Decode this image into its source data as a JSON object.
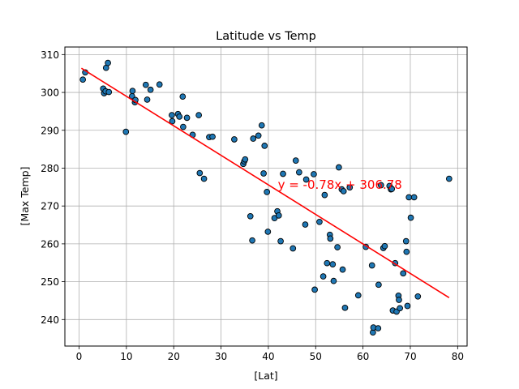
{
  "chart_data": {
    "type": "scatter",
    "title": "Latitude vs Temp",
    "xlabel": "[Lat]",
    "ylabel": "[Max Temp]",
    "xlim": [
      -3,
      82
    ],
    "ylim": [
      233,
      312
    ],
    "xticks": [
      0,
      10,
      20,
      30,
      40,
      50,
      60,
      70,
      80
    ],
    "yticks": [
      240,
      250,
      260,
      270,
      280,
      290,
      300,
      310
    ],
    "grid": true,
    "colors": {
      "points": "#1f77b4",
      "point_edge": "#000000",
      "regression": "#ff0000",
      "annotation": "#ff0000"
    },
    "points": [
      [
        0.8,
        303.4
      ],
      [
        1.3,
        305.3
      ],
      [
        5.1,
        301.0
      ],
      [
        5.3,
        299.8
      ],
      [
        5.6,
        300.3
      ],
      [
        5.7,
        306.5
      ],
      [
        6.1,
        307.8
      ],
      [
        6.3,
        300.1
      ],
      [
        9.9,
        289.6
      ],
      [
        11.3,
        300.4
      ],
      [
        11.2,
        299.0
      ],
      [
        11.8,
        297.4
      ],
      [
        11.9,
        298.0
      ],
      [
        14.1,
        302.0
      ],
      [
        14.4,
        298.1
      ],
      [
        15.1,
        300.7
      ],
      [
        17.0,
        302.1
      ],
      [
        19.6,
        294.0
      ],
      [
        19.7,
        292.4
      ],
      [
        20.9,
        294.3
      ],
      [
        21.2,
        293.6
      ],
      [
        21.9,
        298.9
      ],
      [
        22.0,
        290.9
      ],
      [
        22.8,
        293.3
      ],
      [
        24.0,
        288.8
      ],
      [
        25.3,
        294.0
      ],
      [
        25.5,
        278.7
      ],
      [
        26.4,
        277.2
      ],
      [
        27.5,
        288.2
      ],
      [
        28.2,
        288.3
      ],
      [
        32.8,
        287.6
      ],
      [
        34.7,
        281.1
      ],
      [
        34.9,
        281.8
      ],
      [
        35.1,
        282.3
      ],
      [
        36.2,
        267.3
      ],
      [
        36.6,
        260.9
      ],
      [
        36.8,
        287.8
      ],
      [
        37.9,
        288.6
      ],
      [
        38.6,
        291.3
      ],
      [
        39.0,
        278.6
      ],
      [
        39.2,
        285.9
      ],
      [
        39.7,
        273.7
      ],
      [
        39.9,
        263.2
      ],
      [
        41.3,
        266.8
      ],
      [
        41.9,
        268.6
      ],
      [
        42.2,
        267.5
      ],
      [
        42.6,
        260.7
      ],
      [
        43.1,
        278.5
      ],
      [
        45.2,
        258.8
      ],
      [
        45.8,
        282.0
      ],
      [
        46.5,
        278.9
      ],
      [
        47.8,
        265.1
      ],
      [
        48.0,
        277.0
      ],
      [
        49.6,
        278.4
      ],
      [
        49.8,
        247.9
      ],
      [
        50.8,
        265.8
      ],
      [
        51.6,
        251.4
      ],
      [
        51.9,
        272.9
      ],
      [
        52.4,
        254.9
      ],
      [
        53.0,
        262.4
      ],
      [
        53.1,
        261.4
      ],
      [
        53.6,
        254.6
      ],
      [
        53.8,
        250.2
      ],
      [
        54.6,
        259.1
      ],
      [
        54.9,
        280.2
      ],
      [
        55.5,
        274.4
      ],
      [
        55.7,
        253.2
      ],
      [
        55.9,
        273.9
      ],
      [
        56.2,
        243.1
      ],
      [
        57.2,
        274.9
      ],
      [
        59.0,
        246.4
      ],
      [
        60.6,
        259.2
      ],
      [
        61.9,
        254.3
      ],
      [
        62.1,
        236.6
      ],
      [
        62.2,
        237.9
      ],
      [
        63.2,
        237.7
      ],
      [
        63.3,
        249.2
      ],
      [
        63.8,
        275.5
      ],
      [
        64.3,
        258.9
      ],
      [
        64.6,
        259.4
      ],
      [
        65.6,
        275.3
      ],
      [
        65.9,
        274.4
      ],
      [
        66.1,
        274.5
      ],
      [
        66.3,
        242.4
      ],
      [
        66.8,
        254.9
      ],
      [
        67.1,
        242.1
      ],
      [
        67.5,
        246.3
      ],
      [
        67.6,
        245.2
      ],
      [
        67.8,
        243.0
      ],
      [
        68.5,
        252.2
      ],
      [
        69.1,
        260.7
      ],
      [
        69.2,
        257.9
      ],
      [
        69.4,
        243.6
      ],
      [
        69.7,
        272.3
      ],
      [
        70.1,
        266.9
      ],
      [
        70.8,
        272.3
      ],
      [
        71.6,
        246.1
      ],
      [
        78.2,
        277.2
      ]
    ],
    "regression": {
      "slope": -0.78,
      "intercept": 306.78,
      "x_range": [
        0.5,
        78.2
      ],
      "label": "y = -0.78x + 306.78",
      "label_x": 42,
      "label_y": 274.5
    }
  }
}
